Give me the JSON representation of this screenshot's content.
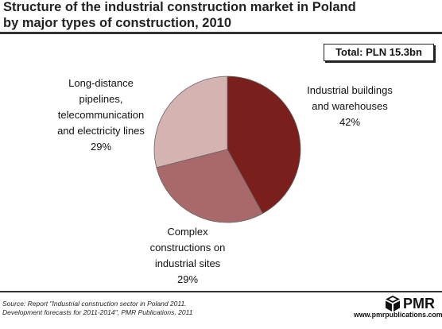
{
  "chart_data": {
    "type": "pie",
    "title_lines": [
      "Structure of the industrial construction market in Poland",
      "by major types of construction, 2010"
    ],
    "total_label": "Total:  PLN 15.3bn",
    "slices": [
      {
        "label_lines": [
          "Industrial buildings",
          "and warehouses"
        ],
        "value": 42,
        "value_label": "42%",
        "color": "#7b1f1d"
      },
      {
        "label_lines": [
          "Complex",
          "constructions on",
          "industrial sites"
        ],
        "value": 29,
        "value_label": "29%",
        "color": "#a9696b"
      },
      {
        "label_lines": [
          "Long-distance",
          "pipelines,",
          "telecommunication",
          "and electricity lines"
        ],
        "value": 29,
        "value_label": "29%",
        "color": "#d4b3b1"
      }
    ]
  },
  "source": {
    "lines": [
      "Source: Report \"Industrial construction sector in Poland 2011.",
      "Development forecasts for 2011-2014\", PMR Publications, 2011"
    ]
  },
  "brand": {
    "name": "PMR",
    "url": "www.pmrpublications.com",
    "logo_icon": "pmr-cube-icon"
  }
}
